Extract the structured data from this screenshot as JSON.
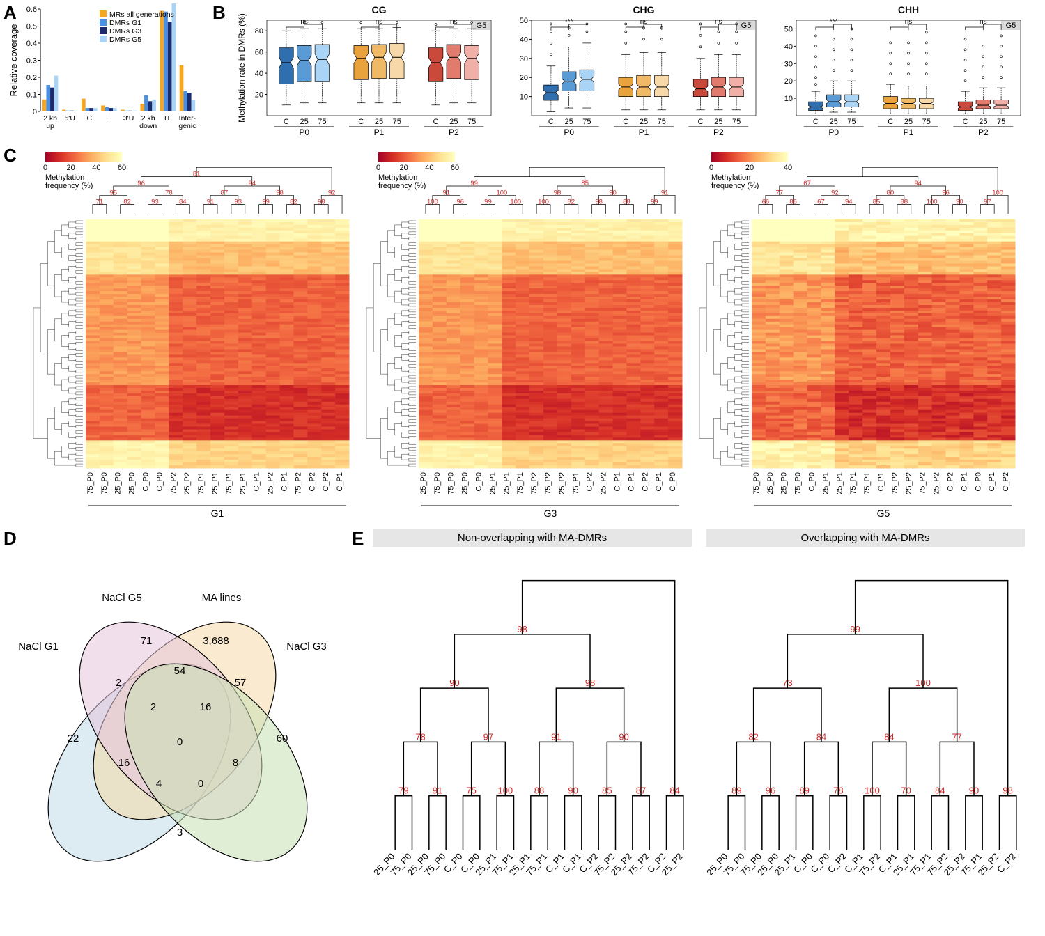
{
  "panelA": {
    "label": "A",
    "ylabel": "Relative coverage",
    "yticks": [
      0,
      0.1,
      0.2,
      0.3,
      0.4,
      0.5,
      0.6
    ],
    "categories": [
      "2 kb\nup",
      "5'U",
      "C",
      "I",
      "3'U",
      "2 kb\ndown",
      "TE",
      "Inter-\ngenic"
    ],
    "series": [
      {
        "name": "MRs all generations",
        "color": "#f5a623",
        "values": [
          0.07,
          0.01,
          0.075,
          0.035,
          0.01,
          0.045,
          0.59,
          0.27
        ]
      },
      {
        "name": "DMRs G1",
        "color": "#4a90e2",
        "values": [
          0.155,
          0.005,
          0.02,
          0.025,
          0.005,
          0.095,
          0.585,
          0.12
        ]
      },
      {
        "name": "DMRs G3",
        "color": "#1a2a6c",
        "values": [
          0.14,
          0.005,
          0.02,
          0.02,
          0.005,
          0.06,
          0.525,
          0.11
        ]
      },
      {
        "name": "DMRs G5",
        "color": "#aad4f5",
        "values": [
          0.21,
          0.005,
          0.02,
          0.02,
          0.005,
          0.07,
          0.66,
          0.065
        ]
      }
    ]
  },
  "panelB": {
    "label": "B",
    "contexts": [
      {
        "title": "CG",
        "tag": "G5",
        "ylabel": "Methylation rate in DMRs (%)",
        "ylim": [
          0,
          90
        ],
        "yticks": [
          20,
          40,
          60,
          80
        ],
        "groups": [
          {
            "name": "P0",
            "sig": "ns",
            "boxes": [
              {
                "l": "C",
                "c": "#2f6fb0",
                "q1": 30,
                "m": 50,
                "q3": 64,
                "wlo": 10,
                "whi": 80,
                "out": []
              },
              {
                "l": "25",
                "c": "#5b9bd5",
                "q1": 32,
                "m": 52,
                "q3": 66,
                "wlo": 12,
                "whi": 82,
                "out": [
                  88
                ]
              },
              {
                "l": "75",
                "c": "#aad4f5",
                "q1": 32,
                "m": 53,
                "q3": 67,
                "wlo": 12,
                "whi": 82,
                "out": [
                  88
                ]
              }
            ]
          },
          {
            "name": "P1",
            "sig": "ns",
            "boxes": [
              {
                "l": "C",
                "c": "#e8a33d",
                "q1": 34,
                "m": 54,
                "q3": 66,
                "wlo": 12,
                "whi": 82,
                "out": [
                  88
                ]
              },
              {
                "l": "25",
                "c": "#f0b966",
                "q1": 35,
                "m": 55,
                "q3": 67,
                "wlo": 12,
                "whi": 82,
                "out": []
              },
              {
                "l": "75",
                "c": "#f7d8a8",
                "q1": 35,
                "m": 55,
                "q3": 68,
                "wlo": 12,
                "whi": 83,
                "out": [
                  88
                ]
              }
            ]
          },
          {
            "name": "P2",
            "sig": "ns",
            "boxes": [
              {
                "l": "C",
                "c": "#c94a3b",
                "q1": 32,
                "m": 50,
                "q3": 64,
                "wlo": 10,
                "whi": 80,
                "out": [
                  86
                ]
              },
              {
                "l": "25",
                "c": "#e07b6e",
                "q1": 35,
                "m": 55,
                "q3": 67,
                "wlo": 12,
                "whi": 82,
                "out": []
              },
              {
                "l": "75",
                "c": "#f0b0a8",
                "q1": 34,
                "m": 54,
                "q3": 66,
                "wlo": 12,
                "whi": 82,
                "out": [
                  88
                ]
              }
            ]
          }
        ]
      },
      {
        "title": "CHG",
        "tag": "G5",
        "ylabel": "",
        "ylim": [
          0,
          50
        ],
        "yticks": [
          10,
          20,
          30,
          40,
          50
        ],
        "groups": [
          {
            "name": "P0",
            "sig": "***",
            "boxes": [
              {
                "l": "C",
                "c": "#2f6fb0",
                "q1": 8,
                "m": 12,
                "q3": 16,
                "wlo": 2,
                "whi": 26,
                "out": [
                  32,
                  38,
                  44,
                  48
                ]
              },
              {
                "l": "25",
                "c": "#5b9bd5",
                "q1": 13,
                "m": 18,
                "q3": 23,
                "wlo": 4,
                "whi": 36,
                "out": [
                  42,
                  46
                ]
              },
              {
                "l": "75",
                "c": "#aad4f5",
                "q1": 13,
                "m": 19,
                "q3": 24,
                "wlo": 4,
                "whi": 38,
                "out": [
                  44,
                  48
                ]
              }
            ]
          },
          {
            "name": "P1",
            "sig": "ns",
            "boxes": [
              {
                "l": "C",
                "c": "#e8a33d",
                "q1": 10,
                "m": 15,
                "q3": 20,
                "wlo": 3,
                "whi": 32,
                "out": [
                  38,
                  44,
                  48
                ]
              },
              {
                "l": "25",
                "c": "#f0b966",
                "q1": 10,
                "m": 15,
                "q3": 21,
                "wlo": 3,
                "whi": 33,
                "out": [
                  40,
                  46
                ]
              },
              {
                "l": "75",
                "c": "#f7d8a8",
                "q1": 10,
                "m": 15,
                "q3": 21,
                "wlo": 3,
                "whi": 33,
                "out": [
                  40,
                  46
                ]
              }
            ]
          },
          {
            "name": "P2",
            "sig": "ns",
            "boxes": [
              {
                "l": "C",
                "c": "#c94a3b",
                "q1": 10,
                "m": 14,
                "q3": 19,
                "wlo": 3,
                "whi": 30,
                "out": [
                  36,
                  42,
                  48
                ]
              },
              {
                "l": "25",
                "c": "#e07b6e",
                "q1": 10,
                "m": 15,
                "q3": 20,
                "wlo": 3,
                "whi": 32,
                "out": [
                  38,
                  44
                ]
              },
              {
                "l": "75",
                "c": "#f0b0a8",
                "q1": 10,
                "m": 15,
                "q3": 20,
                "wlo": 3,
                "whi": 32,
                "out": [
                  38,
                  44,
                  48
                ]
              }
            ]
          }
        ]
      },
      {
        "title": "CHH",
        "tag": "G5",
        "ylabel": "",
        "ylim": [
          0,
          55
        ],
        "yticks": [
          10,
          20,
          30,
          40,
          50
        ],
        "groups": [
          {
            "name": "P0",
            "sig": "***",
            "boxes": [
              {
                "l": "C",
                "c": "#2f6fb0",
                "q1": 3,
                "m": 5,
                "q3": 8,
                "wlo": 1,
                "whi": 14,
                "out": [
                  18,
                  22,
                  28,
                  34,
                  40,
                  46
                ]
              },
              {
                "l": "25",
                "c": "#5b9bd5",
                "q1": 5,
                "m": 8,
                "q3": 12,
                "wlo": 2,
                "whi": 20,
                "out": [
                  26,
                  32,
                  38,
                  44
                ]
              },
              {
                "l": "75",
                "c": "#aad4f5",
                "q1": 5,
                "m": 8,
                "q3": 12,
                "wlo": 2,
                "whi": 20,
                "out": [
                  26,
                  32,
                  38,
                  44,
                  50
                ]
              }
            ]
          },
          {
            "name": "P1",
            "sig": "ns",
            "boxes": [
              {
                "l": "C",
                "c": "#e8a33d",
                "q1": 4,
                "m": 7,
                "q3": 11,
                "wlo": 1,
                "whi": 18,
                "out": [
                  24,
                  30,
                  36,
                  42
                ]
              },
              {
                "l": "25",
                "c": "#f0b966",
                "q1": 4,
                "m": 7,
                "q3": 10,
                "wlo": 1,
                "whi": 17,
                "out": [
                  24,
                  30,
                  36,
                  42
                ]
              },
              {
                "l": "75",
                "c": "#f7d8a8",
                "q1": 4,
                "m": 7,
                "q3": 10,
                "wlo": 1,
                "whi": 17,
                "out": [
                  24,
                  30,
                  36,
                  42,
                  48
                ]
              }
            ]
          },
          {
            "name": "P2",
            "sig": "ns",
            "boxes": [
              {
                "l": "C",
                "c": "#c94a3b",
                "q1": 3,
                "m": 5,
                "q3": 8,
                "wlo": 1,
                "whi": 14,
                "out": [
                  20,
                  26,
                  32,
                  38,
                  44
                ]
              },
              {
                "l": "25",
                "c": "#e07b6e",
                "q1": 4,
                "m": 6,
                "q3": 9,
                "wlo": 1,
                "whi": 16,
                "out": [
                  22,
                  28,
                  34,
                  40
                ]
              },
              {
                "l": "75",
                "c": "#f0b0a8",
                "q1": 4,
                "m": 6,
                "q3": 9,
                "wlo": 1,
                "whi": 16,
                "out": [
                  22,
                  28,
                  34,
                  40,
                  46
                ]
              }
            ]
          }
        ]
      }
    ]
  },
  "panelC": {
    "label": "C",
    "legend_label": "Methylation\nfrequency (%)",
    "heatmaps": [
      {
        "gen": "G1",
        "scale_max": 60,
        "scale_ticks": [
          0,
          20,
          40,
          60
        ],
        "xlabels": [
          "75_P0",
          "75_P0",
          "25_P0",
          "25_P0",
          "C_P0",
          "C_P0",
          "75_P2",
          "25_P2",
          "75_P1",
          "25_P1",
          "75_P1",
          "25_P1",
          "C_P1",
          "25_P2",
          "C_P1",
          "75_P2",
          "C_P2",
          "C_P2",
          "C_P1"
        ],
        "bootstraps": [
          71,
          82,
          93,
          84,
          91,
          93,
          99,
          82,
          98,
          95,
          78,
          87,
          98,
          92,
          96,
          94,
          81
        ]
      },
      {
        "gen": "G3",
        "scale_max": 60,
        "scale_ticks": [
          0,
          20,
          40,
          60
        ],
        "xlabels": [
          "25_P0",
          "75_P0",
          "75_P0",
          "25_P0",
          "C_P0",
          "25_P1",
          "25_P1",
          "75_P1",
          "75_P2",
          "75_P2",
          "25_P2",
          "75_P1",
          "C_P2",
          "25_P2",
          "C_P1",
          "C_P1",
          "C_P2",
          "C_P1",
          "C_P0"
        ],
        "bootstraps": [
          100,
          96,
          99,
          100,
          100,
          82,
          98,
          88,
          99,
          91,
          100,
          98,
          90,
          91,
          99,
          85
        ]
      },
      {
        "gen": "G5",
        "scale_max": 40,
        "scale_ticks": [
          0,
          20,
          40
        ],
        "xlabels": [
          "75_P0",
          "25_P0",
          "25_P0",
          "75_P0",
          "C_P0",
          "25_P1",
          "25_P1",
          "75_P1",
          "75_P1",
          "C_P1",
          "75_P2",
          "25_P2",
          "75_P2",
          "25_P2",
          "C_P2",
          "C_P1",
          "C_P0",
          "C_P1",
          "C_P2"
        ],
        "bootstraps": [
          66,
          86,
          67,
          94,
          85,
          88,
          100,
          90,
          97,
          77,
          92,
          80,
          96,
          100,
          67,
          94
        ]
      }
    ],
    "colormap": [
      "#a50026",
      "#d73027",
      "#f46d43",
      "#fdae61",
      "#fee090",
      "#ffffbf"
    ]
  },
  "panelD": {
    "label": "D",
    "sets": [
      {
        "name": "NaCl G1",
        "color": "#bfdce8"
      },
      {
        "name": "NaCl G5",
        "color": "#f5d9a8"
      },
      {
        "name": "MA lines",
        "color": "#e6c5dd"
      },
      {
        "name": "NaCl G3",
        "color": "#c8e0b4"
      }
    ],
    "values": {
      "only_G1": 22,
      "only_G5": 71,
      "only_MA": "3,688",
      "only_G3": 60,
      "G1_G5": 2,
      "G5_MA": 54,
      "MA_G3": 57,
      "G1_G5_MA": 2,
      "G5_MA_G3": 16,
      "G1_G3": 3,
      "G1_MA": 16,
      "G5_G3": 8,
      "G1_MA_G3": 4,
      "G1_G5_G3": 0,
      "center": 0
    }
  },
  "panelE": {
    "label": "E",
    "trees": [
      {
        "title": "Non-overlapping with MA-DMRs",
        "leaves": [
          "25_P0",
          "75_P0",
          "25_P0",
          "75_P0",
          "C_P0",
          "C_P0",
          "25_P1",
          "75_P1",
          "25_P1",
          "75_P1",
          "C_P1",
          "C_P1",
          "C_P2",
          "75_P2",
          "25_P2",
          "75_P2",
          "C_P2",
          "25_P2"
        ],
        "bootstraps": [
          79,
          91,
          75,
          100,
          88,
          90,
          85,
          87,
          84,
          78,
          97,
          91,
          90,
          90,
          98,
          98
        ]
      },
      {
        "title": "Overlapping with MA-DMRs",
        "leaves": [
          "25_P0",
          "75_P0",
          "75_P0",
          "25_P0",
          "25_P1",
          "C_P0",
          "C_P0",
          "C_P2",
          "C_P1",
          "75_P2",
          "C_P1",
          "25_P1",
          "75_P1",
          "75_P2",
          "25_P2",
          "75_P1",
          "25_P2",
          "C_P2"
        ],
        "bootstraps": [
          89,
          96,
          89,
          78,
          100,
          70,
          84,
          90,
          98,
          82,
          84,
          84,
          77,
          73,
          100,
          99
        ]
      }
    ]
  }
}
